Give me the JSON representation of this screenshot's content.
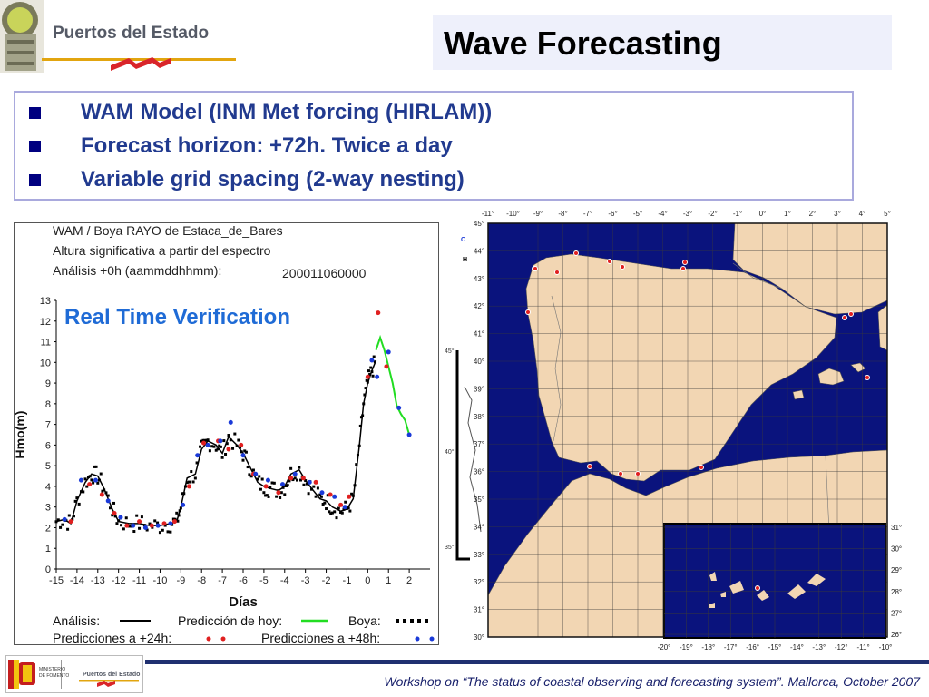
{
  "header": {
    "org_name": "Puertos del Estado",
    "title": "Wave Forecasting"
  },
  "bullets": [
    "WAM Model (INM Met forcing (HIRLAM))",
    "Forecast horizon: +72h. Twice a day",
    "Variable grid spacing (2-way nesting)"
  ],
  "verification_chart": {
    "header_line1": "WAM / Boya RAYO de Estaca_de_Bares",
    "header_line2": "Altura significativa a partir del espectro",
    "header_line3": "Análisis +0h    (aammddhhmm):",
    "date_code": "200011060000",
    "overlay_label": "Real Time Verification",
    "legend": {
      "analysis": "Análisis:",
      "forecast_today": "Predicción de hoy:",
      "buoy": "Boya:",
      "forecast_24": "Predicciones a +24h:",
      "forecast_48": "Predicciones a +48h:"
    },
    "colors": {
      "analysis": "#000000",
      "forecast_today": "#22dd22",
      "buoy": "#000000",
      "forecast_24": "#e02020",
      "forecast_48": "#1a3ad8"
    }
  },
  "chart_data": {
    "type": "line",
    "title": "",
    "xlabel": "Días",
    "ylabel": "Hmo(m)",
    "xlim": [
      -15,
      3
    ],
    "ylim": [
      0,
      13
    ],
    "x_ticks": [
      -15,
      -14,
      -13,
      -12,
      -11,
      -10,
      -9,
      -8,
      -7,
      -6,
      -5,
      -4,
      -3,
      -2,
      -1,
      0,
      1,
      2
    ],
    "y_ticks": [
      0,
      1,
      2,
      3,
      4,
      5,
      6,
      7,
      8,
      9,
      10,
      11,
      12,
      13
    ],
    "series": [
      {
        "name": "Análisis",
        "x": [
          -15,
          -14.6,
          -14.3,
          -14,
          -13.6,
          -13.3,
          -13,
          -12.7,
          -12.3,
          -12,
          -11.5,
          -11,
          -10.5,
          -10,
          -9.5,
          -9.2,
          -9,
          -8.7,
          -8.3,
          -8,
          -7.7,
          -7.3,
          -7,
          -6.7,
          -6.3,
          -6,
          -5.7,
          -5.3,
          -5,
          -4.7,
          -4.3,
          -4,
          -3.7,
          -3.3,
          -3,
          -2.7,
          -2.3,
          -2,
          -1.7,
          -1.3,
          -1,
          -0.7,
          -0.4,
          -0.2,
          0,
          0.2,
          0.4
        ],
        "y": [
          2.3,
          2.4,
          2.2,
          3.3,
          4.2,
          4.6,
          4.5,
          3.9,
          2.9,
          2.3,
          2.2,
          2.2,
          2.1,
          2.1,
          2.2,
          2.3,
          3.0,
          4.4,
          4.6,
          5.8,
          6.2,
          6.0,
          5.6,
          6.4,
          6.0,
          5.6,
          5.0,
          4.2,
          4.0,
          3.9,
          3.8,
          4.0,
          4.6,
          4.8,
          4.3,
          3.9,
          3.4,
          3.3,
          3.0,
          2.8,
          2.9,
          3.4,
          6.0,
          8.0,
          9.0,
          9.6,
          10.1
        ]
      },
      {
        "name": "Predicción de hoy",
        "x": [
          0.4,
          0.6,
          0.8,
          1.0,
          1.2,
          1.4,
          1.6,
          1.8,
          2.0
        ],
        "y": [
          10.6,
          11.2,
          10.6,
          9.8,
          9.0,
          7.9,
          7.5,
          7.2,
          6.5
        ]
      },
      {
        "name": "Predicciones a +24h",
        "x": [
          -14.3,
          -13.4,
          -12.8,
          -12.2,
          -11.6,
          -11,
          -10.4,
          -9.8,
          -9.3,
          -8.6,
          -7.9,
          -7.2,
          -6.7,
          -6.1,
          -5.5,
          -4.9,
          -4.3,
          -3.7,
          -3.1,
          -2.5,
          -1.8,
          -1.3,
          -0.9,
          0,
          0.5,
          0.9
        ],
        "y": [
          2.3,
          4.1,
          3.6,
          2.7,
          2.1,
          2.3,
          2.1,
          2.2,
          2.3,
          4.0,
          6.1,
          6.2,
          5.8,
          6.0,
          4.6,
          4.0,
          3.7,
          4.4,
          4.4,
          4.2,
          3.6,
          3.1,
          3.5,
          9.3,
          12.4,
          9.8
        ]
      },
      {
        "name": "Predicciones a +48h",
        "x": [
          -14.6,
          -13.8,
          -13.1,
          -12.5,
          -11.9,
          -11.3,
          -10.7,
          -10.1,
          -9.5,
          -8.9,
          -8.2,
          -7.7,
          -7.1,
          -6.6,
          -6.0,
          -5.4,
          -4.8,
          -4.1,
          -3.5,
          -2.8,
          -2.2,
          -1.6,
          -1.1,
          0.2,
          0.45,
          1.0,
          1.5,
          2.0
        ],
        "y": [
          2.4,
          4.3,
          4.3,
          3.3,
          2.5,
          2.1,
          2.0,
          2.1,
          2.2,
          3.1,
          5.5,
          6.0,
          6.2,
          7.1,
          5.5,
          4.6,
          4.3,
          4.1,
          4.6,
          4.2,
          3.7,
          3.5,
          3.0,
          10.1,
          9.3,
          10.5,
          7.8,
          6.5
        ]
      }
    ]
  },
  "map": {
    "top_lon_labels": [
      "-11°",
      "-10°",
      "-9°",
      "-8°",
      "-7°",
      "-6°",
      "-5°",
      "-4°",
      "-3°",
      "-2°",
      "-1°",
      "0°",
      "1°",
      "2°",
      "3°",
      "4°",
      "5°"
    ],
    "left_lat_labels": [
      "45°",
      "44°",
      "43°",
      "42°",
      "41°",
      "40°",
      "39°",
      "38°",
      "37°",
      "36°",
      "35°",
      "34°",
      "33°",
      "32°",
      "31°",
      "30°"
    ],
    "inset_lat_labels": [
      "31°",
      "30°",
      "29°",
      "28°",
      "27°",
      "26°"
    ],
    "inset_lon_labels": [
      "-20°",
      "-19°",
      "-18°",
      "-17°",
      "-16°",
      "-15°",
      "-14°",
      "-13°",
      "-12°",
      "-11°",
      "-10°"
    ],
    "behind_lat_labels": [
      "45°",
      "40°",
      "35°"
    ],
    "small_marks": [
      "C",
      "H"
    ],
    "colors": {
      "sea": "#0a137d",
      "land": "#f2d6b3",
      "grid": "#3a3a3a"
    }
  },
  "footer": {
    "ministry_lines": [
      "MINISTERIO",
      "DE FOMENTO"
    ],
    "org_name": "Puertos del Estado",
    "text": "Workshop on “The status of coastal observing and forecasting system”. Mallorca, October 2007"
  }
}
